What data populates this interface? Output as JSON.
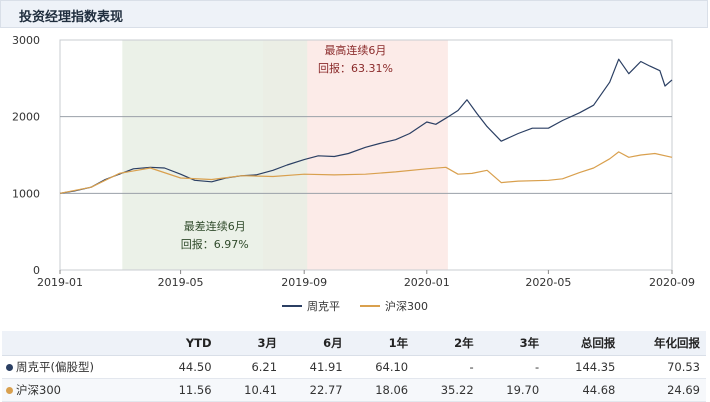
{
  "header": {
    "title": "投资经理指数表现"
  },
  "colors": {
    "fund": "#2b3f63",
    "index": "#d9a04e",
    "best_band": "#fbe7e4",
    "worst_band": "#e8efe4"
  },
  "annotations": [
    {
      "title": "最高连续6月",
      "text": "回报：63.31%"
    },
    {
      "title": "最差连续6月",
      "text": "回报：6.97%"
    }
  ],
  "chart_data": {
    "type": "line",
    "x_ticks": [
      "2019-01",
      "2019-05",
      "2019-09",
      "2020-01",
      "2020-05",
      "2020-09"
    ],
    "x_range": [
      "2019-01-01",
      "2020-09-01"
    ],
    "ylim": [
      0,
      3000
    ],
    "y_ticks": [
      0,
      1000,
      2000,
      3000
    ],
    "best_period": [
      "2019-07-22",
      "2020-01-22"
    ],
    "worst_period": [
      "2019-03-04",
      "2019-09-04"
    ],
    "legend_position": "bottom",
    "series": [
      {
        "name": "周克平",
        "points": [
          [
            "2019-01-01",
            1000
          ],
          [
            "2019-01-15",
            1030
          ],
          [
            "2019-02-01",
            1080
          ],
          [
            "2019-02-15",
            1180
          ],
          [
            "2019-03-01",
            1250
          ],
          [
            "2019-03-15",
            1320
          ],
          [
            "2019-04-01",
            1340
          ],
          [
            "2019-04-15",
            1330
          ],
          [
            "2019-05-01",
            1250
          ],
          [
            "2019-05-15",
            1170
          ],
          [
            "2019-06-01",
            1150
          ],
          [
            "2019-06-15",
            1200
          ],
          [
            "2019-07-01",
            1230
          ],
          [
            "2019-07-15",
            1240
          ],
          [
            "2019-08-01",
            1300
          ],
          [
            "2019-08-15",
            1370
          ],
          [
            "2019-09-01",
            1440
          ],
          [
            "2019-09-15",
            1490
          ],
          [
            "2019-10-01",
            1480
          ],
          [
            "2019-10-15",
            1520
          ],
          [
            "2019-11-01",
            1600
          ],
          [
            "2019-11-15",
            1650
          ],
          [
            "2019-12-01",
            1700
          ],
          [
            "2019-12-15",
            1780
          ],
          [
            "2020-01-01",
            1930
          ],
          [
            "2020-01-10",
            1900
          ],
          [
            "2020-01-20",
            1980
          ],
          [
            "2020-02-01",
            2080
          ],
          [
            "2020-02-10",
            2220
          ],
          [
            "2020-02-20",
            2040
          ],
          [
            "2020-03-01",
            1870
          ],
          [
            "2020-03-15",
            1680
          ],
          [
            "2020-04-01",
            1780
          ],
          [
            "2020-04-15",
            1850
          ],
          [
            "2020-05-01",
            1850
          ],
          [
            "2020-05-15",
            1950
          ],
          [
            "2020-06-01",
            2050
          ],
          [
            "2020-06-15",
            2150
          ],
          [
            "2020-07-01",
            2450
          ],
          [
            "2020-07-10",
            2750
          ],
          [
            "2020-07-20",
            2560
          ],
          [
            "2020-08-01",
            2720
          ],
          [
            "2020-08-10",
            2660
          ],
          [
            "2020-08-20",
            2600
          ],
          [
            "2020-08-25",
            2400
          ],
          [
            "2020-09-01",
            2480
          ]
        ]
      },
      {
        "name": "沪深300",
        "points": [
          [
            "2019-01-01",
            1000
          ],
          [
            "2019-02-01",
            1080
          ],
          [
            "2019-03-01",
            1260
          ],
          [
            "2019-04-01",
            1330
          ],
          [
            "2019-05-01",
            1200
          ],
          [
            "2019-06-01",
            1180
          ],
          [
            "2019-07-01",
            1230
          ],
          [
            "2019-08-01",
            1220
          ],
          [
            "2019-09-01",
            1250
          ],
          [
            "2019-10-01",
            1240
          ],
          [
            "2019-11-01",
            1250
          ],
          [
            "2019-12-01",
            1280
          ],
          [
            "2020-01-01",
            1320
          ],
          [
            "2020-01-20",
            1340
          ],
          [
            "2020-02-01",
            1250
          ],
          [
            "2020-02-15",
            1260
          ],
          [
            "2020-03-01",
            1300
          ],
          [
            "2020-03-15",
            1140
          ],
          [
            "2020-04-01",
            1160
          ],
          [
            "2020-05-01",
            1170
          ],
          [
            "2020-05-15",
            1190
          ],
          [
            "2020-06-01",
            1270
          ],
          [
            "2020-06-15",
            1330
          ],
          [
            "2020-07-01",
            1450
          ],
          [
            "2020-07-10",
            1540
          ],
          [
            "2020-07-20",
            1470
          ],
          [
            "2020-08-01",
            1500
          ],
          [
            "2020-08-15",
            1520
          ],
          [
            "2020-09-01",
            1470
          ]
        ]
      }
    ]
  },
  "table": {
    "headers": [
      "",
      "YTD",
      "3月",
      "6月",
      "1年",
      "2年",
      "3年",
      "总回报",
      "年化回报"
    ],
    "rows": [
      {
        "name": "周克平(偏股型)",
        "values": [
          "44.50",
          "6.21",
          "41.91",
          "64.10",
          "-",
          "-",
          "144.35",
          "70.53"
        ]
      },
      {
        "name": "沪深300",
        "values": [
          "11.56",
          "10.41",
          "22.77",
          "18.06",
          "35.22",
          "19.70",
          "44.68",
          "24.69"
        ]
      }
    ]
  }
}
